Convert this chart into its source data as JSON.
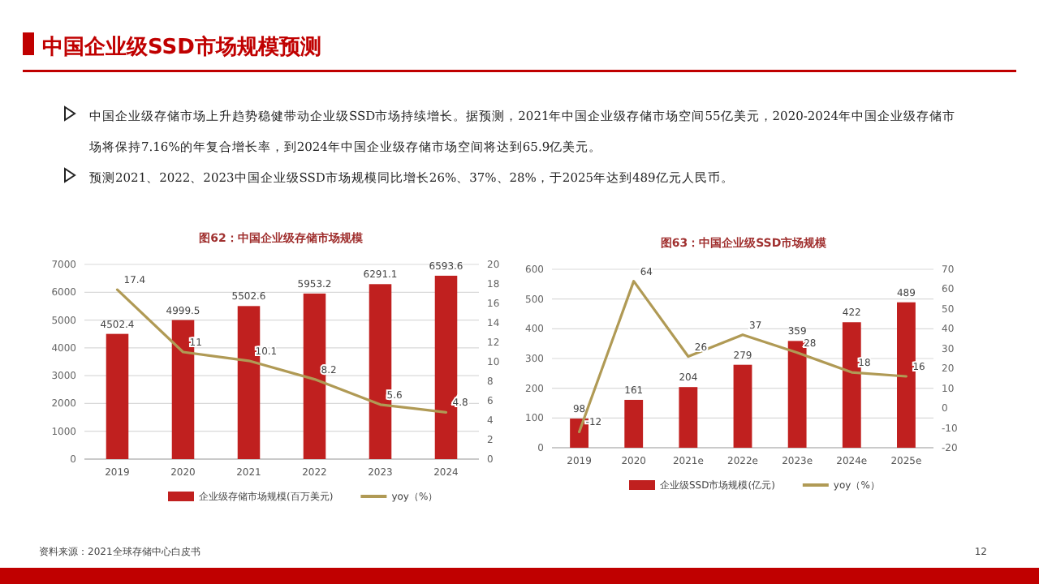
{
  "chart_data": [
    {
      "type": "other",
      "title": "中国企业级SSD市场规模预测",
      "annotations": [
        "中国企业级存储市场上升趋势稳健带动企业级SSD市场持续增长。据预测，2021年中国企业级存储市场空间55亿美元，2020-2024年中国企业级存储市场将保持7.16%的年复合增长率，到2024年中国企业级存储市场空间将达到65.9亿美元。",
        "预测2021、2022、2023中国企业级SSD市场规模同比增长26%、37%、28%，于2025年达到489亿元人民币。",
        "资料来源：2021全球存储中心白皮书",
        "12"
      ]
    },
    {
      "type": "bar",
      "title": "图62：中国企业级存储市场规模",
      "categories": [
        "2019",
        "2020",
        "2021",
        "2022",
        "2023",
        "2024"
      ],
      "series": [
        {
          "name": "企业级存储市场规模(百万美元)",
          "type": "bar",
          "color": "#c0201f",
          "values": [
            4502.4,
            4999.5,
            5502.6,
            5953.2,
            6291.1,
            6593.6
          ]
        },
        {
          "name": "yoy（%）",
          "type": "line",
          "axis": "y2",
          "color": "#b09a55",
          "values": [
            17.4,
            11,
            10.1,
            8.2,
            5.6,
            4.8
          ]
        }
      ],
      "ylim": [
        0,
        7000
      ],
      "yticks": [
        0,
        1000,
        2000,
        3000,
        4000,
        5000,
        6000,
        7000
      ],
      "y2lim": [
        0,
        20
      ],
      "y2ticks": [
        0,
        2,
        4,
        6,
        8,
        10,
        12,
        14,
        16,
        18,
        20
      ],
      "grid": "y",
      "legend": "bottom",
      "data_labels": true
    },
    {
      "type": "bar",
      "title": "图63：中国企业级SSD市场规模",
      "categories": [
        "2019",
        "2020",
        "2021e",
        "2022e",
        "2023e",
        "2024e",
        "2025e"
      ],
      "series": [
        {
          "name": "企业级SSD市场规模(亿元)",
          "type": "bar",
          "color": "#c0201f",
          "values": [
            98,
            161,
            204,
            279,
            359,
            422,
            489
          ]
        },
        {
          "name": "yoy（%）",
          "type": "line",
          "axis": "y2",
          "color": "#b09a55",
          "values": [
            -12,
            64,
            26,
            37,
            28,
            18,
            16
          ]
        }
      ],
      "ylim": [
        0,
        600
      ],
      "yticks": [
        0,
        100,
        200,
        300,
        400,
        500,
        600
      ],
      "y2lim": [
        -20,
        70
      ],
      "y2ticks": [
        -20,
        -10,
        0,
        10,
        20,
        30,
        40,
        50,
        60,
        70
      ],
      "grid": "y",
      "legend": "bottom",
      "data_labels": true
    }
  ]
}
